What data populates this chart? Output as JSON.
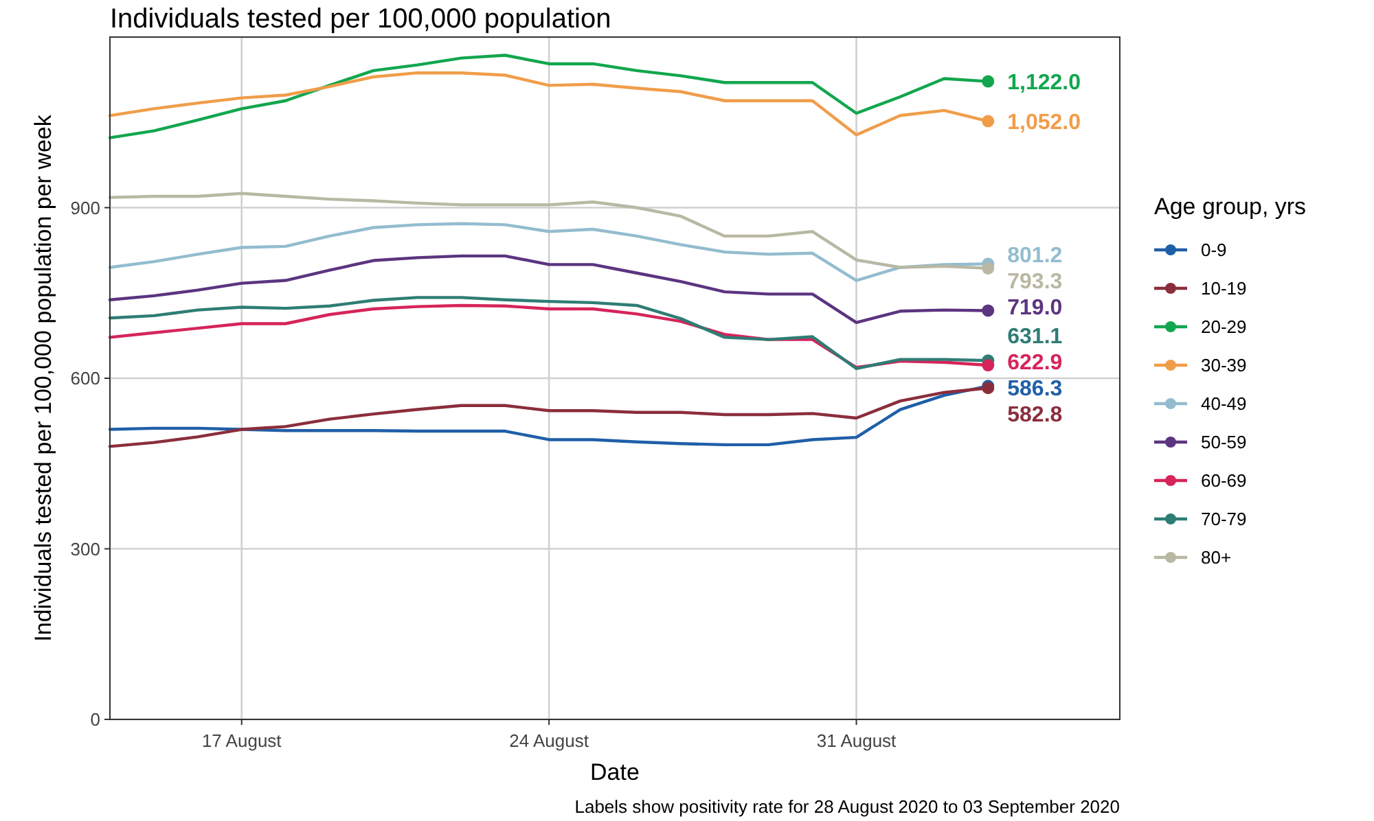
{
  "chart_data": {
    "type": "line",
    "title": "Individuals tested per 100,000 population",
    "xlabel": "Date",
    "ylabel": "Individuals tested per 100,000 population per week",
    "legend_title": "Age group, yrs",
    "annotations": [
      "Labels show positivity rate for 28 August 2020 to 03 September 2020"
    ],
    "x": [
      "2020-08-14",
      "2020-08-15",
      "2020-08-16",
      "2020-08-17",
      "2020-08-18",
      "2020-08-19",
      "2020-08-20",
      "2020-08-21",
      "2020-08-22",
      "2020-08-23",
      "2020-08-24",
      "2020-08-25",
      "2020-08-26",
      "2020-08-27",
      "2020-08-28",
      "2020-08-29",
      "2020-08-30",
      "2020-08-31",
      "2020-09-01",
      "2020-09-02",
      "2020-09-03"
    ],
    "xlim": [
      "2020-08-14",
      "2020-09-06"
    ],
    "xticks": [
      {
        "value": "2020-08-17",
        "label": "17 August"
      },
      {
        "value": "2020-08-24",
        "label": "24 August"
      },
      {
        "value": "2020-08-31",
        "label": "31 August"
      }
    ],
    "ylim": [
      0,
      1200
    ],
    "yticks": [
      0,
      300,
      600,
      900
    ],
    "grid": true,
    "legend": "right",
    "series": [
      {
        "name": "0-9",
        "color": "#1f5fa8",
        "values": [
          510,
          512,
          512,
          510,
          508,
          508,
          508,
          507,
          507,
          507,
          492,
          492,
          488,
          485,
          483,
          483,
          492,
          496,
          545,
          570,
          586.3
        ],
        "value_labels": [
          null,
          null,
          null,
          null,
          null,
          null,
          null,
          null,
          null,
          null,
          null,
          null,
          null,
          null,
          null,
          null,
          null,
          null,
          null,
          null,
          "586.3"
        ]
      },
      {
        "name": "10-19",
        "color": "#8b2e3c",
        "values": [
          480,
          487,
          497,
          510,
          515,
          528,
          537,
          545,
          552,
          552,
          543,
          543,
          540,
          540,
          536,
          536,
          538,
          530,
          560,
          575,
          582.8
        ],
        "value_labels": [
          null,
          null,
          null,
          null,
          null,
          null,
          null,
          null,
          null,
          null,
          null,
          null,
          null,
          null,
          null,
          null,
          null,
          null,
          null,
          null,
          "582.8"
        ]
      },
      {
        "name": "20-29",
        "color": "#12a64e",
        "values": [
          1023,
          1035,
          1054,
          1074,
          1088,
          1115,
          1141,
          1151,
          1163,
          1168,
          1153,
          1153,
          1141,
          1132,
          1120,
          1120,
          1120,
          1066,
          1095,
          1127,
          1122
        ],
        "value_labels": [
          null,
          null,
          null,
          null,
          null,
          null,
          null,
          null,
          null,
          null,
          null,
          null,
          null,
          null,
          null,
          null,
          null,
          null,
          null,
          null,
          "1,122.0"
        ]
      },
      {
        "name": "30-39",
        "color": "#f09d4a",
        "values": [
          1062,
          1074,
          1084,
          1093,
          1098,
          1113,
          1130,
          1137,
          1137,
          1133,
          1115,
          1117,
          1110,
          1104,
          1088,
          1088,
          1088,
          1028,
          1062,
          1071,
          1052
        ],
        "value_labels": [
          null,
          null,
          null,
          null,
          null,
          null,
          null,
          null,
          null,
          null,
          null,
          null,
          null,
          null,
          null,
          null,
          null,
          null,
          null,
          null,
          "1,052.0"
        ]
      },
      {
        "name": "40-49",
        "color": "#93bccf",
        "values": [
          795,
          805,
          818,
          830,
          832,
          850,
          865,
          870,
          872,
          870,
          858,
          862,
          850,
          835,
          822,
          818,
          820,
          772,
          795,
          800,
          801.2
        ],
        "value_labels": [
          null,
          null,
          null,
          null,
          null,
          null,
          null,
          null,
          null,
          null,
          null,
          null,
          null,
          null,
          null,
          null,
          null,
          null,
          null,
          null,
          "801.2"
        ]
      },
      {
        "name": "50-59",
        "color": "#5c3480",
        "values": [
          738,
          745,
          755,
          767,
          772,
          790,
          807,
          812,
          815,
          815,
          800,
          800,
          785,
          770,
          752,
          748,
          748,
          698,
          718,
          720,
          719.0
        ],
        "value_labels": [
          null,
          null,
          null,
          null,
          null,
          null,
          null,
          null,
          null,
          null,
          null,
          null,
          null,
          null,
          null,
          null,
          null,
          null,
          null,
          null,
          "719.0"
        ]
      },
      {
        "name": "60-69",
        "color": "#d6245a",
        "values": [
          672,
          680,
          688,
          696,
          696,
          712,
          722,
          726,
          728,
          727,
          722,
          722,
          713,
          700,
          677,
          668,
          668,
          619,
          630,
          628,
          622.9
        ],
        "value_labels": [
          null,
          null,
          null,
          null,
          null,
          null,
          null,
          null,
          null,
          null,
          null,
          null,
          null,
          null,
          null,
          null,
          null,
          null,
          null,
          null,
          "622.9"
        ]
      },
      {
        "name": "70-79",
        "color": "#2e7d75",
        "values": [
          706,
          710,
          720,
          725,
          723,
          727,
          737,
          742,
          742,
          738,
          735,
          733,
          728,
          705,
          672,
          668,
          673,
          617,
          633,
          633,
          631.1
        ],
        "value_labels": [
          null,
          null,
          null,
          null,
          null,
          null,
          null,
          null,
          null,
          null,
          null,
          null,
          null,
          null,
          null,
          null,
          null,
          null,
          null,
          null,
          "631.1"
        ]
      },
      {
        "name": "80+",
        "color": "#b8b8a4",
        "values": [
          918,
          920,
          920,
          925,
          920,
          915,
          912,
          908,
          905,
          905,
          905,
          910,
          900,
          885,
          850,
          850,
          858,
          808,
          795,
          797,
          793.3
        ],
        "value_labels": [
          null,
          null,
          null,
          null,
          null,
          null,
          null,
          null,
          null,
          null,
          null,
          null,
          null,
          null,
          null,
          null,
          null,
          null,
          null,
          null,
          "793.3"
        ]
      }
    ]
  }
}
